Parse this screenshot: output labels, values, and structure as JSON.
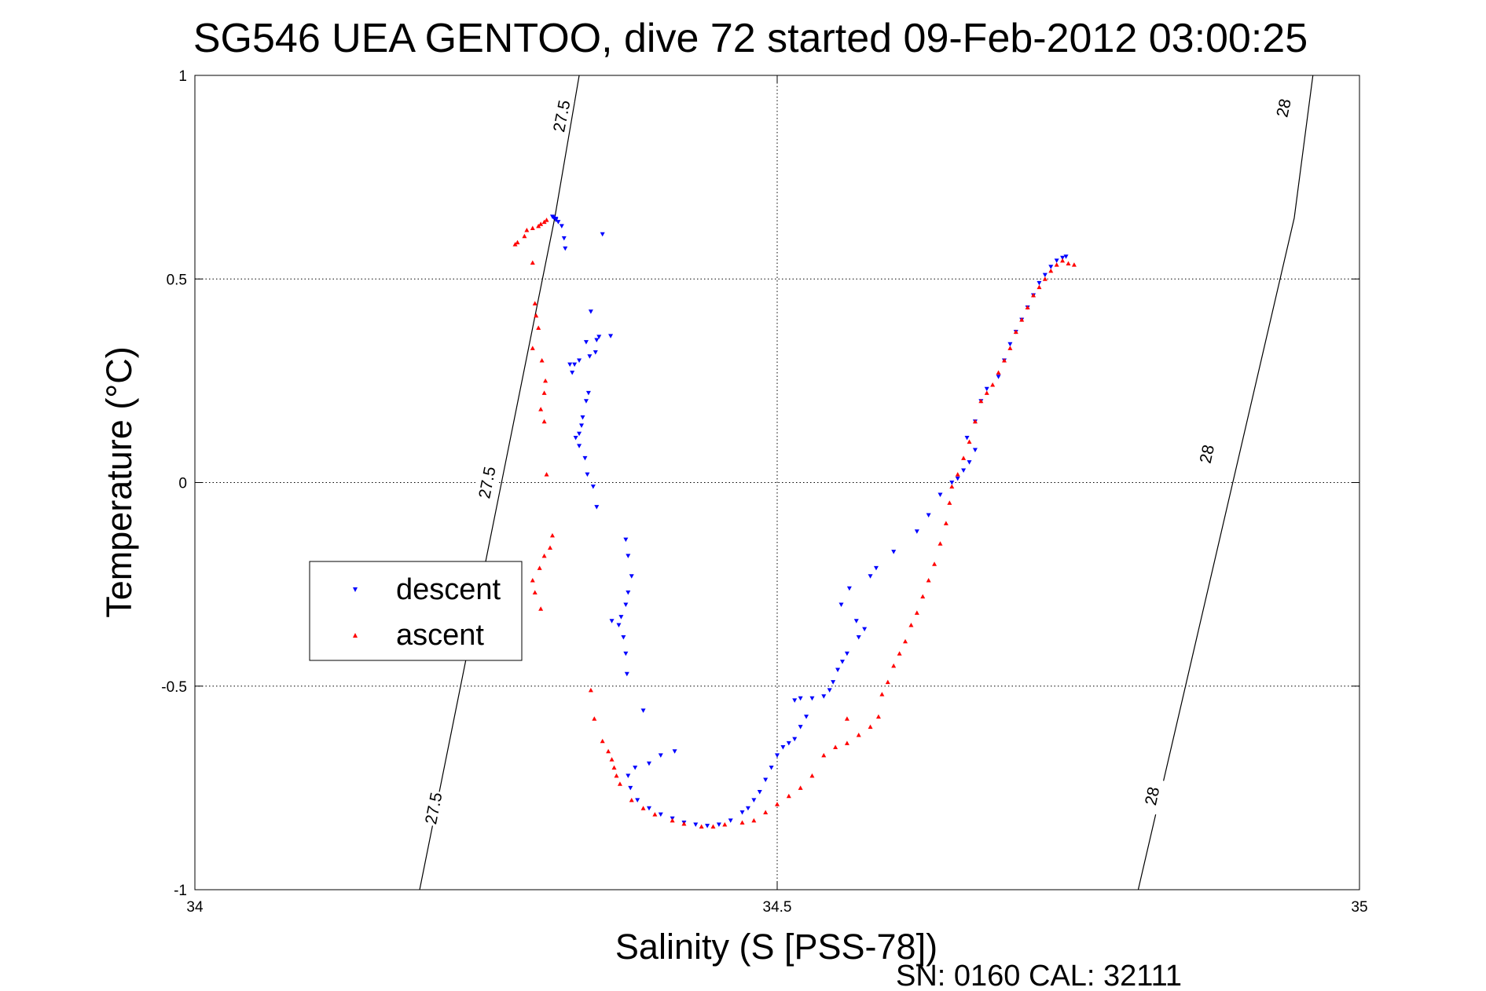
{
  "chart_data": {
    "type": "scatter",
    "title": "SG546 UEA GENTOO, dive 72 started 09-Feb-2012 03:00:25",
    "xlabel": "Salinity (S [PSS-78])",
    "ylabel": "Temperature (°C)",
    "xlim": [
      34,
      35
    ],
    "ylim": [
      -1,
      1
    ],
    "x_ticks": [
      34,
      34.5,
      35
    ],
    "x_tick_labels": [
      "34",
      "34.5",
      "35"
    ],
    "y_ticks": [
      -1,
      -0.5,
      0,
      0.5,
      1
    ],
    "y_tick_labels": [
      "-1",
      "-0.5",
      "0",
      "0.5",
      "1"
    ],
    "grid": "dotted",
    "legend_position": "left-middle",
    "footer": "SN: 0160  CAL: 32111",
    "colors": {
      "descent": "#0000ff",
      "ascent": "#ff0000",
      "contour": "#000000"
    },
    "contours": [
      {
        "label": "27.5",
        "points": [
          [
            34.193,
            -1.0
          ],
          [
            34.309,
            0.65
          ],
          [
            34.33,
            1.0
          ]
        ],
        "label_positions": [
          [
            34.205,
            -0.8
          ],
          [
            34.251,
            0.0
          ],
          [
            34.315,
            0.9
          ]
        ]
      },
      {
        "label": "28",
        "points": [
          [
            34.81,
            -1.0
          ],
          [
            34.944,
            0.65
          ],
          [
            34.96,
            1.0
          ]
        ],
        "label_positions": [
          [
            34.822,
            -0.77
          ],
          [
            34.869,
            0.07
          ],
          [
            34.935,
            0.92
          ]
        ]
      }
    ],
    "series": [
      {
        "name": "descent",
        "marker": "triangle-down",
        "points": [
          [
            34.307,
            0.653
          ],
          [
            34.308,
            0.651
          ],
          [
            34.31,
            0.648
          ],
          [
            34.31,
            0.645
          ],
          [
            34.312,
            0.64
          ],
          [
            34.315,
            0.63
          ],
          [
            34.317,
            0.6
          ],
          [
            34.318,
            0.575
          ],
          [
            34.35,
            0.61
          ],
          [
            34.34,
            0.42
          ],
          [
            34.357,
            0.36
          ],
          [
            34.347,
            0.358
          ],
          [
            34.345,
            0.35
          ],
          [
            34.336,
            0.345
          ],
          [
            34.344,
            0.32
          ],
          [
            34.339,
            0.31
          ],
          [
            34.33,
            0.3
          ],
          [
            34.326,
            0.29
          ],
          [
            34.322,
            0.29
          ],
          [
            34.324,
            0.27
          ],
          [
            34.338,
            0.22
          ],
          [
            34.336,
            0.2
          ],
          [
            34.333,
            0.16
          ],
          [
            34.332,
            0.14
          ],
          [
            34.33,
            0.12
          ],
          [
            34.327,
            0.11
          ],
          [
            34.33,
            0.09
          ],
          [
            34.335,
            0.06
          ],
          [
            34.337,
            0.02
          ],
          [
            34.342,
            -0.01
          ],
          [
            34.345,
            -0.06
          ],
          [
            34.37,
            -0.14
          ],
          [
            34.372,
            -0.18
          ],
          [
            34.375,
            -0.23
          ],
          [
            34.372,
            -0.27
          ],
          [
            34.37,
            -0.3
          ],
          [
            34.366,
            -0.33
          ],
          [
            34.358,
            -0.34
          ],
          [
            34.364,
            -0.35
          ],
          [
            34.368,
            -0.38
          ],
          [
            34.37,
            -0.42
          ],
          [
            34.371,
            -0.47
          ],
          [
            34.385,
            -0.56
          ],
          [
            34.412,
            -0.66
          ],
          [
            34.4,
            -0.67
          ],
          [
            34.39,
            -0.69
          ],
          [
            34.378,
            -0.7
          ],
          [
            34.372,
            -0.72
          ],
          [
            34.374,
            -0.75
          ],
          [
            34.38,
            -0.78
          ],
          [
            34.39,
            -0.8
          ],
          [
            34.4,
            -0.815
          ],
          [
            34.41,
            -0.825
          ],
          [
            34.42,
            -0.835
          ],
          [
            34.43,
            -0.84
          ],
          [
            34.44,
            -0.843
          ],
          [
            34.45,
            -0.84
          ],
          [
            34.46,
            -0.83
          ],
          [
            34.47,
            -0.81
          ],
          [
            34.475,
            -0.8
          ],
          [
            34.48,
            -0.78
          ],
          [
            34.485,
            -0.76
          ],
          [
            34.49,
            -0.73
          ],
          [
            34.495,
            -0.7
          ],
          [
            34.5,
            -0.67
          ],
          [
            34.505,
            -0.65
          ],
          [
            34.51,
            -0.64
          ],
          [
            34.515,
            -0.63
          ],
          [
            34.52,
            -0.6
          ],
          [
            34.525,
            -0.575
          ],
          [
            34.52,
            -0.53
          ],
          [
            34.515,
            -0.535
          ],
          [
            34.53,
            -0.53
          ],
          [
            34.54,
            -0.525
          ],
          [
            34.545,
            -0.51
          ],
          [
            34.548,
            -0.49
          ],
          [
            34.552,
            -0.46
          ],
          [
            34.556,
            -0.44
          ],
          [
            34.56,
            -0.42
          ],
          [
            34.57,
            -0.38
          ],
          [
            34.575,
            -0.36
          ],
          [
            34.568,
            -0.34
          ],
          [
            34.555,
            -0.3
          ],
          [
            34.562,
            -0.26
          ],
          [
            34.58,
            -0.23
          ],
          [
            34.585,
            -0.21
          ],
          [
            34.6,
            -0.17
          ],
          [
            34.62,
            -0.12
          ],
          [
            34.63,
            -0.08
          ],
          [
            34.64,
            -0.03
          ],
          [
            34.65,
            0.0
          ],
          [
            34.655,
            0.01
          ],
          [
            34.66,
            0.03
          ],
          [
            34.665,
            0.05
          ],
          [
            34.67,
            0.08
          ],
          [
            34.663,
            0.11
          ],
          [
            34.67,
            0.15
          ],
          [
            34.675,
            0.2
          ],
          [
            34.68,
            0.23
          ],
          [
            34.69,
            0.26
          ],
          [
            34.695,
            0.3
          ],
          [
            34.7,
            0.34
          ],
          [
            34.705,
            0.37
          ],
          [
            34.71,
            0.4
          ],
          [
            34.715,
            0.43
          ],
          [
            34.72,
            0.46
          ],
          [
            34.725,
            0.49
          ],
          [
            34.73,
            0.51
          ],
          [
            34.735,
            0.53
          ],
          [
            34.74,
            0.545
          ],
          [
            34.745,
            0.552
          ],
          [
            34.748,
            0.555
          ]
        ]
      },
      {
        "name": "ascent",
        "marker": "triangle-up",
        "points": [
          [
            34.302,
            0.645
          ],
          [
            34.3,
            0.64
          ],
          [
            34.297,
            0.635
          ],
          [
            34.295,
            0.63
          ],
          [
            34.29,
            0.625
          ],
          [
            34.285,
            0.62
          ],
          [
            34.283,
            0.605
          ],
          [
            34.277,
            0.59
          ],
          [
            34.275,
            0.585
          ],
          [
            34.29,
            0.54
          ],
          [
            34.292,
            0.44
          ],
          [
            34.293,
            0.41
          ],
          [
            34.295,
            0.38
          ],
          [
            34.29,
            0.33
          ],
          [
            34.298,
            0.3
          ],
          [
            34.301,
            0.25
          ],
          [
            34.3,
            0.22
          ],
          [
            34.297,
            0.18
          ],
          [
            34.3,
            0.15
          ],
          [
            34.302,
            0.02
          ],
          [
            34.307,
            -0.13
          ],
          [
            34.305,
            -0.16
          ],
          [
            34.3,
            -0.18
          ],
          [
            34.296,
            -0.21
          ],
          [
            34.29,
            -0.24
          ],
          [
            34.292,
            -0.27
          ],
          [
            34.297,
            -0.31
          ],
          [
            34.34,
            -0.51
          ],
          [
            34.343,
            -0.58
          ],
          [
            34.35,
            -0.635
          ],
          [
            34.355,
            -0.66
          ],
          [
            34.358,
            -0.68
          ],
          [
            34.36,
            -0.7
          ],
          [
            34.362,
            -0.72
          ],
          [
            34.365,
            -0.74
          ],
          [
            34.375,
            -0.78
          ],
          [
            34.385,
            -0.8
          ],
          [
            34.395,
            -0.815
          ],
          [
            34.41,
            -0.83
          ],
          [
            34.42,
            -0.838
          ],
          [
            34.435,
            -0.845
          ],
          [
            34.445,
            -0.845
          ],
          [
            34.455,
            -0.84
          ],
          [
            34.47,
            -0.835
          ],
          [
            34.48,
            -0.83
          ],
          [
            34.49,
            -0.81
          ],
          [
            34.5,
            -0.79
          ],
          [
            34.51,
            -0.77
          ],
          [
            34.52,
            -0.75
          ],
          [
            34.53,
            -0.72
          ],
          [
            34.54,
            -0.67
          ],
          [
            34.55,
            -0.65
          ],
          [
            34.56,
            -0.64
          ],
          [
            34.57,
            -0.62
          ],
          [
            34.58,
            -0.6
          ],
          [
            34.587,
            -0.575
          ],
          [
            34.56,
            -0.58
          ],
          [
            34.59,
            -0.52
          ],
          [
            34.595,
            -0.49
          ],
          [
            34.6,
            -0.45
          ],
          [
            34.605,
            -0.42
          ],
          [
            34.61,
            -0.39
          ],
          [
            34.615,
            -0.35
          ],
          [
            34.62,
            -0.32
          ],
          [
            34.625,
            -0.28
          ],
          [
            34.63,
            -0.24
          ],
          [
            34.635,
            -0.2
          ],
          [
            34.64,
            -0.15
          ],
          [
            34.645,
            -0.1
          ],
          [
            34.648,
            -0.05
          ],
          [
            34.65,
            -0.01
          ],
          [
            34.655,
            0.02
          ],
          [
            34.66,
            0.06
          ],
          [
            34.665,
            0.1
          ],
          [
            34.67,
            0.15
          ],
          [
            34.675,
            0.2
          ],
          [
            34.68,
            0.22
          ],
          [
            34.685,
            0.24
          ],
          [
            34.69,
            0.27
          ],
          [
            34.695,
            0.3
          ],
          [
            34.7,
            0.33
          ],
          [
            34.705,
            0.37
          ],
          [
            34.71,
            0.4
          ],
          [
            34.715,
            0.43
          ],
          [
            34.72,
            0.46
          ],
          [
            34.725,
            0.48
          ],
          [
            34.73,
            0.5
          ],
          [
            34.735,
            0.52
          ],
          [
            34.74,
            0.535
          ],
          [
            34.745,
            0.545
          ],
          [
            34.75,
            0.538
          ],
          [
            34.755,
            0.535
          ]
        ]
      }
    ]
  }
}
